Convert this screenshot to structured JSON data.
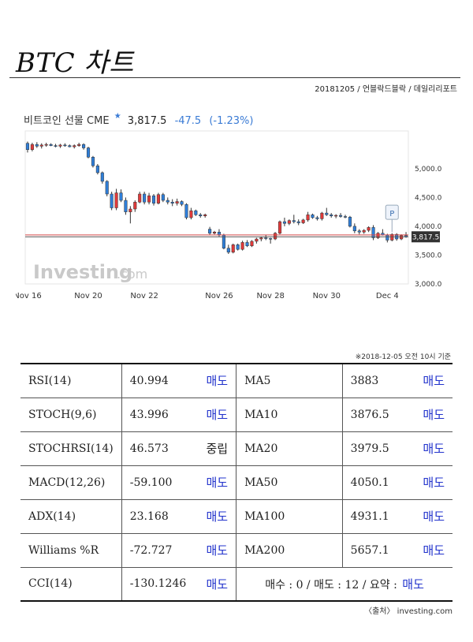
{
  "page": {
    "title": "BTC 차트",
    "meta": "20181205 / 언블락드블락 / 데일리리포트",
    "asof": "※2018-12-05 오전 10시 기준",
    "source": "〈출처〉 investing.com"
  },
  "chart_header": {
    "instrument": "비트코인 선물 CME",
    "price": "3,817.5",
    "change": "-47.5",
    "change_pct": "(-1.23%)"
  },
  "chart_data": {
    "type": "candlestick",
    "ylim": [
      3000,
      5600
    ],
    "yticks": [
      "5,000.0",
      "4,500.0",
      "4,000.0",
      "3,500.0",
      "3,000.0"
    ],
    "ytick_values": [
      5000,
      4500,
      4000,
      3500,
      3000
    ],
    "x_labels": [
      "Nov 16",
      "Nov 20",
      "Nov 22",
      "Nov 26",
      "Nov 28",
      "Nov 30",
      "Dec 4"
    ],
    "x_label_index": [
      0,
      13,
      25,
      41,
      52,
      64,
      77
    ],
    "current_price": 3817.5,
    "current_price_label": "3,817.5",
    "red_line": 3850,
    "watermark": "Investing.com",
    "marker_label": "P",
    "colors": {
      "up": "#e03a3a",
      "down": "#2f7ed8",
      "price_tag": "#333333"
    },
    "candles": [
      [
        5440,
        5470,
        5280,
        5330
      ],
      [
        5330,
        5450,
        5300,
        5420
      ],
      [
        5420,
        5460,
        5360,
        5390
      ],
      [
        5390,
        5440,
        5350,
        5410
      ],
      [
        5410,
        5450,
        5380,
        5420
      ],
      [
        5420,
        5440,
        5390,
        5400
      ],
      [
        5400,
        5430,
        5370,
        5390
      ],
      [
        5390,
        5430,
        5360,
        5410
      ],
      [
        5410,
        5440,
        5380,
        5400
      ],
      [
        5400,
        5420,
        5370,
        5380
      ],
      [
        5380,
        5420,
        5350,
        5400
      ],
      [
        5400,
        5450,
        5380,
        5420
      ],
      [
        5420,
        5440,
        5330,
        5360
      ],
      [
        5360,
        5380,
        5180,
        5200
      ],
      [
        5200,
        5220,
        5020,
        5050
      ],
      [
        5050,
        5080,
        4900,
        4930
      ],
      [
        4930,
        4950,
        4740,
        4780
      ],
      [
        4780,
        4800,
        4520,
        4560
      ],
      [
        4560,
        4600,
        4280,
        4320
      ],
      [
        4320,
        4650,
        4280,
        4580
      ],
      [
        4580,
        4640,
        4420,
        4450
      ],
      [
        4450,
        4500,
        4200,
        4250
      ],
      [
        4250,
        4350,
        4050,
        4300
      ],
      [
        4300,
        4450,
        4250,
        4420
      ],
      [
        4420,
        4600,
        4400,
        4560
      ],
      [
        4560,
        4600,
        4380,
        4420
      ],
      [
        4420,
        4580,
        4380,
        4530
      ],
      [
        4530,
        4560,
        4360,
        4400
      ],
      [
        4400,
        4580,
        4380,
        4550
      ],
      [
        4550,
        4580,
        4420,
        4450
      ],
      [
        4450,
        4500,
        4380,
        4420
      ],
      [
        4420,
        4470,
        4350,
        4400
      ],
      [
        4400,
        4480,
        4360,
        4430
      ],
      [
        4430,
        4450,
        4350,
        4380
      ],
      [
        4380,
        4400,
        4120,
        4150
      ],
      [
        4150,
        4320,
        4120,
        4270
      ],
      [
        4270,
        4290,
        4180,
        4200
      ],
      [
        4200,
        4230,
        4150,
        4180
      ],
      [
        4180,
        4220,
        4150,
        4200
      ],
      [
        3950,
        3990,
        3850,
        3880
      ],
      [
        3880,
        3920,
        3860,
        3900
      ],
      [
        3900,
        3950,
        3820,
        3850
      ],
      [
        3850,
        3870,
        3600,
        3620
      ],
      [
        3620,
        3680,
        3520,
        3550
      ],
      [
        3550,
        3700,
        3530,
        3680
      ],
      [
        3680,
        3700,
        3580,
        3600
      ],
      [
        3600,
        3750,
        3580,
        3720
      ],
      [
        3720,
        3760,
        3640,
        3660
      ],
      [
        3660,
        3760,
        3640,
        3740
      ],
      [
        3740,
        3800,
        3700,
        3780
      ],
      [
        3780,
        3820,
        3740,
        3800
      ],
      [
        3800,
        3850,
        3760,
        3790
      ],
      [
        3790,
        3800,
        3700,
        3780
      ],
      [
        3780,
        3900,
        3760,
        3880
      ],
      [
        3880,
        4100,
        3860,
        4080
      ],
      [
        4080,
        4150,
        4000,
        4050
      ],
      [
        4050,
        4120,
        4020,
        4100
      ],
      [
        4100,
        4200,
        4050,
        4080
      ],
      [
        4080,
        4120,
        4020,
        4060
      ],
      [
        4060,
        4130,
        4040,
        4110
      ],
      [
        4110,
        4250,
        4080,
        4200
      ],
      [
        4200,
        4220,
        4130,
        4150
      ],
      [
        4150,
        4180,
        4100,
        4130
      ],
      [
        4130,
        4250,
        4100,
        4230
      ],
      [
        4230,
        4320,
        4180,
        4200
      ],
      [
        4200,
        4230,
        4150,
        4180
      ],
      [
        4180,
        4210,
        4140,
        4190
      ],
      [
        4190,
        4230,
        4150,
        4170
      ],
      [
        4170,
        4200,
        4140,
        4160
      ],
      [
        4160,
        4180,
        3980,
        4000
      ],
      [
        4000,
        4050,
        3880,
        3920
      ],
      [
        3920,
        3950,
        3860,
        3900
      ],
      [
        3900,
        3950,
        3870,
        3930
      ],
      [
        3930,
        4000,
        3900,
        3980
      ],
      [
        3980,
        4020,
        3760,
        3800
      ],
      [
        3800,
        3900,
        3780,
        3880
      ],
      [
        3880,
        3950,
        3840,
        3850
      ],
      [
        3850,
        3870,
        3720,
        3760
      ],
      [
        3760,
        3880,
        3740,
        3860
      ],
      [
        3860,
        3880,
        3750,
        3780
      ],
      [
        3780,
        3860,
        3760,
        3840
      ],
      [
        3840,
        3900,
        3800,
        3820
      ]
    ]
  },
  "indicators": [
    {
      "name": "RSI(14)",
      "value": "40.994",
      "signal": "매도",
      "signal_type": "sell",
      "ma_name": "MA5",
      "ma_value": "3883",
      "ma_signal": "매도"
    },
    {
      "name": "STOCH(9,6)",
      "value": "43.996",
      "signal": "매도",
      "signal_type": "sell",
      "ma_name": "MA10",
      "ma_value": "3876.5",
      "ma_signal": "매도"
    },
    {
      "name": "STOCHRSI(14)",
      "value": "46.573",
      "signal": "중립",
      "signal_type": "neutral",
      "ma_name": "MA20",
      "ma_value": "3979.5",
      "ma_signal": "매도"
    },
    {
      "name": "MACD(12,26)",
      "value": "-59.100",
      "signal": "매도",
      "signal_type": "sell",
      "ma_name": "MA50",
      "ma_value": "4050.1",
      "ma_signal": "매도"
    },
    {
      "name": "ADX(14)",
      "value": "23.168",
      "signal": "매도",
      "signal_type": "sell",
      "ma_name": "MA100",
      "ma_value": "4931.1",
      "ma_signal": "매도"
    },
    {
      "name": "Williams %R",
      "value": "-72.727",
      "signal": "매도",
      "signal_type": "sell",
      "ma_name": "MA200",
      "ma_value": "5657.1",
      "ma_signal": "매도"
    }
  ],
  "last_row": {
    "name": "CCI(14)",
    "value": "-130.1246",
    "signal": "매도"
  },
  "summary": {
    "text": "매수 : 0 / 매도 : 12 / 요약 :",
    "signal": "매도"
  }
}
